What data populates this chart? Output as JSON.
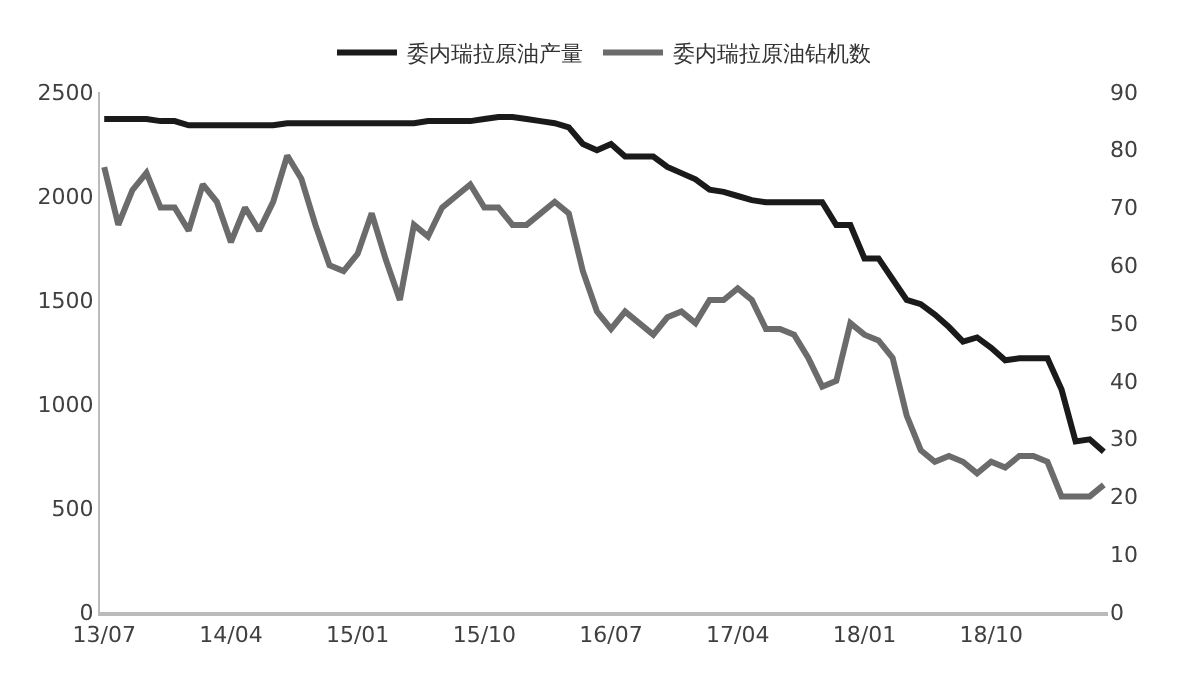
{
  "chart_data": {
    "type": "line",
    "categories": [
      "13/07",
      null,
      null,
      null,
      null,
      null,
      null,
      null,
      null,
      "14/04",
      null,
      null,
      null,
      null,
      null,
      null,
      null,
      null,
      "15/01",
      null,
      null,
      null,
      null,
      null,
      null,
      null,
      null,
      "15/10",
      null,
      null,
      null,
      null,
      null,
      null,
      null,
      null,
      "16/07",
      null,
      null,
      null,
      null,
      null,
      null,
      null,
      null,
      "17/04",
      null,
      null,
      null,
      null,
      null,
      null,
      null,
      null,
      "18/01",
      null,
      null,
      null,
      null,
      null,
      null,
      null,
      null,
      "18/10",
      null,
      null,
      null,
      null,
      null,
      null,
      null,
      null
    ],
    "series": [
      {
        "name": "委内瑞拉原油产量",
        "color": "#1a1a1a",
        "values": [
          2370,
          2370,
          2370,
          2370,
          2360,
          2360,
          2340,
          2340,
          2340,
          2340,
          2340,
          2340,
          2340,
          2350,
          2350,
          2350,
          2350,
          2350,
          2350,
          2350,
          2350,
          2350,
          2350,
          2360,
          2360,
          2360,
          2360,
          2370,
          2380,
          2380,
          2370,
          2360,
          2350,
          2330,
          2250,
          2220,
          2250,
          2190,
          2190,
          2190,
          2140,
          2110,
          2080,
          2030,
          2020,
          2000,
          1980,
          1970,
          1970,
          1970,
          1970,
          1970,
          1860,
          1860,
          1700,
          1700,
          1600,
          1500,
          1480,
          1430,
          1370,
          1300,
          1320,
          1270,
          1210,
          1220,
          1220,
          1220,
          1070,
          820,
          830,
          770
        ]
      },
      {
        "name": "委内瑞拉原油钻机数",
        "color": "#6b6b6b",
        "axis": "y2",
        "values": [
          77,
          67,
          73,
          76,
          70,
          70,
          66,
          74,
          71,
          64,
          70,
          66,
          71,
          79,
          75,
          67,
          60,
          59,
          62,
          69,
          61,
          54,
          67,
          65,
          70,
          72,
          74,
          70,
          70,
          67,
          67,
          69,
          71,
          69,
          59,
          52,
          49,
          52,
          50,
          48,
          51,
          52,
          50,
          54,
          54,
          56,
          54,
          49,
          49,
          48,
          44,
          39,
          40,
          50,
          48,
          47,
          44,
          34,
          28,
          26,
          27,
          26,
          24,
          26,
          25,
          27,
          27,
          26,
          20,
          20,
          20,
          22
        ]
      }
    ],
    "ylim": [
      0,
      2500
    ],
    "yticks": [
      0,
      500,
      1000,
      1500,
      2000,
      2500
    ],
    "y2lim": [
      0,
      90
    ],
    "y2ticks": [
      0,
      10,
      20,
      30,
      40,
      50,
      60,
      70,
      80,
      90
    ],
    "grid": false,
    "legend": "top",
    "marker": "none",
    "line_style": "solid"
  }
}
